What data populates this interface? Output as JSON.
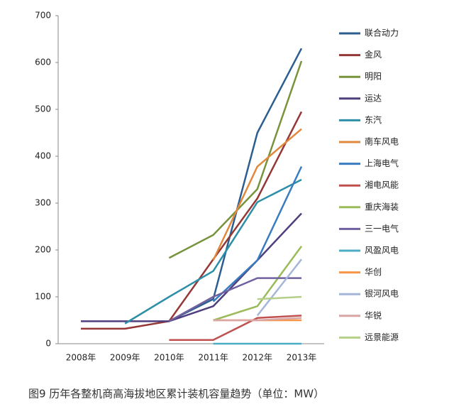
{
  "chart_data": {
    "type": "line",
    "title": "图9 历年各整机商高海拔地区累计装机容量趋势（单位：MW）",
    "categories": [
      "2008年",
      "2009年",
      "2010年",
      "2011年",
      "2012年",
      "2013年"
    ],
    "ylim": [
      0,
      700
    ],
    "yticks": [
      0,
      100,
      200,
      300,
      400,
      500,
      600,
      700
    ],
    "series": [
      {
        "name": "联合动力",
        "color": "#2c5f8f",
        "values": [
          null,
          null,
          48,
          95,
          450,
          630
        ]
      },
      {
        "name": "金风",
        "color": "#953735",
        "values": [
          32,
          32,
          48,
          180,
          310,
          495
        ]
      },
      {
        "name": "明阳",
        "color": "#77933c",
        "values": [
          null,
          null,
          183,
          232,
          330,
          603
        ]
      },
      {
        "name": "运达",
        "color": "#4f3f7f",
        "values": [
          48,
          48,
          48,
          80,
          178,
          278
        ]
      },
      {
        "name": "东汽",
        "color": "#2d8fa8",
        "values": [
          null,
          43,
          100,
          155,
          302,
          350
        ]
      },
      {
        "name": "南车风电",
        "color": "#e0883c",
        "values": [
          null,
          null,
          null,
          178,
          378,
          458
        ]
      },
      {
        "name": "上海电气",
        "color": "#3a7cc0",
        "values": [
          null,
          null,
          null,
          90,
          178,
          378
        ]
      },
      {
        "name": "湘电风能",
        "color": "#c0504d",
        "values": [
          null,
          null,
          8,
          8,
          55,
          60
        ]
      },
      {
        "name": "重庆海装",
        "color": "#9bbb59",
        "values": [
          null,
          null,
          null,
          50,
          80,
          208
        ]
      },
      {
        "name": "三一电气",
        "color": "#7060a0",
        "values": [
          null,
          null,
          48,
          100,
          140,
          140
        ]
      },
      {
        "name": "风盈风电",
        "color": "#4bacc6",
        "values": [
          null,
          null,
          null,
          0,
          0,
          0
        ]
      },
      {
        "name": "华创",
        "color": "#f79646",
        "values": [
          null,
          null,
          null,
          50,
          50,
          50
        ]
      },
      {
        "name": "银河风电",
        "color": "#a5b6d8",
        "values": [
          null,
          null,
          null,
          null,
          60,
          180
        ]
      },
      {
        "name": "华锐",
        "color": "#d9a5a5",
        "values": [
          null,
          null,
          null,
          50,
          50,
          55
        ]
      },
      {
        "name": "远景能源",
        "color": "#b5cf8a",
        "values": [
          null,
          null,
          null,
          null,
          95,
          100
        ]
      }
    ]
  }
}
